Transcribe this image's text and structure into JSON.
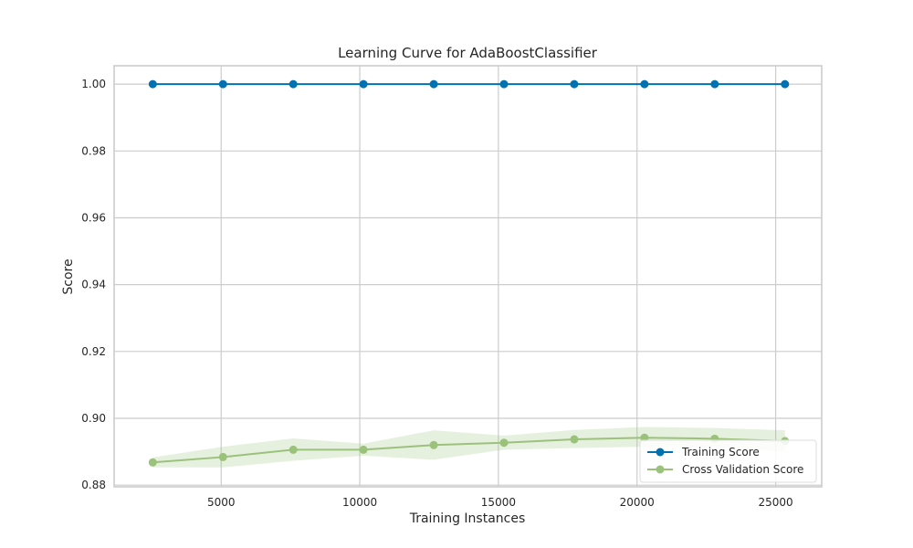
{
  "chart_data": {
    "type": "line",
    "title": "Learning Curve for AdaBoostClassifier",
    "xlabel": "Training Instances",
    "ylabel": "Score",
    "xlim": [
      1140,
      26660
    ],
    "ylim": [
      0.8795,
      1.0055
    ],
    "xticks": [
      5000,
      10000,
      15000,
      20000,
      25000
    ],
    "xtick_labels": [
      "5000",
      "10000",
      "15000",
      "20000",
      "25000"
    ],
    "yticks": [
      0.88,
      0.9,
      0.92,
      0.94,
      0.96,
      0.98,
      1.0
    ],
    "ytick_labels": [
      "0.88",
      "0.90",
      "0.92",
      "0.94",
      "0.96",
      "0.98",
      "1.00"
    ],
    "grid": true,
    "legend_position": "bottom-right",
    "x": [
      2534,
      5067,
      7601,
      10134,
      12668,
      15201,
      17735,
      20268,
      22802,
      25335
    ],
    "series": [
      {
        "name": "Training Score",
        "color": "#0072B2",
        "values": [
          1.0,
          1.0,
          1.0,
          1.0,
          1.0,
          1.0,
          1.0,
          1.0,
          1.0,
          1.0
        ],
        "band_lower": [
          1.0,
          1.0,
          1.0,
          1.0,
          1.0,
          1.0,
          1.0,
          1.0,
          1.0,
          1.0
        ],
        "band_upper": [
          1.0,
          1.0,
          1.0,
          1.0,
          1.0,
          1.0,
          1.0,
          1.0,
          1.0,
          1.0
        ]
      },
      {
        "name": "Cross Validation Score",
        "color": "#9BC27B",
        "values": [
          0.8868,
          0.8884,
          0.8906,
          0.8906,
          0.892,
          0.8927,
          0.8937,
          0.8942,
          0.8939,
          0.8932
        ],
        "band_lower": [
          0.8853,
          0.8853,
          0.8873,
          0.8888,
          0.8876,
          0.8906,
          0.8911,
          0.8915,
          0.8914,
          0.89
        ],
        "band_upper": [
          0.8883,
          0.8915,
          0.894,
          0.8924,
          0.8964,
          0.8948,
          0.8965,
          0.8974,
          0.8971,
          0.8964
        ]
      }
    ]
  }
}
